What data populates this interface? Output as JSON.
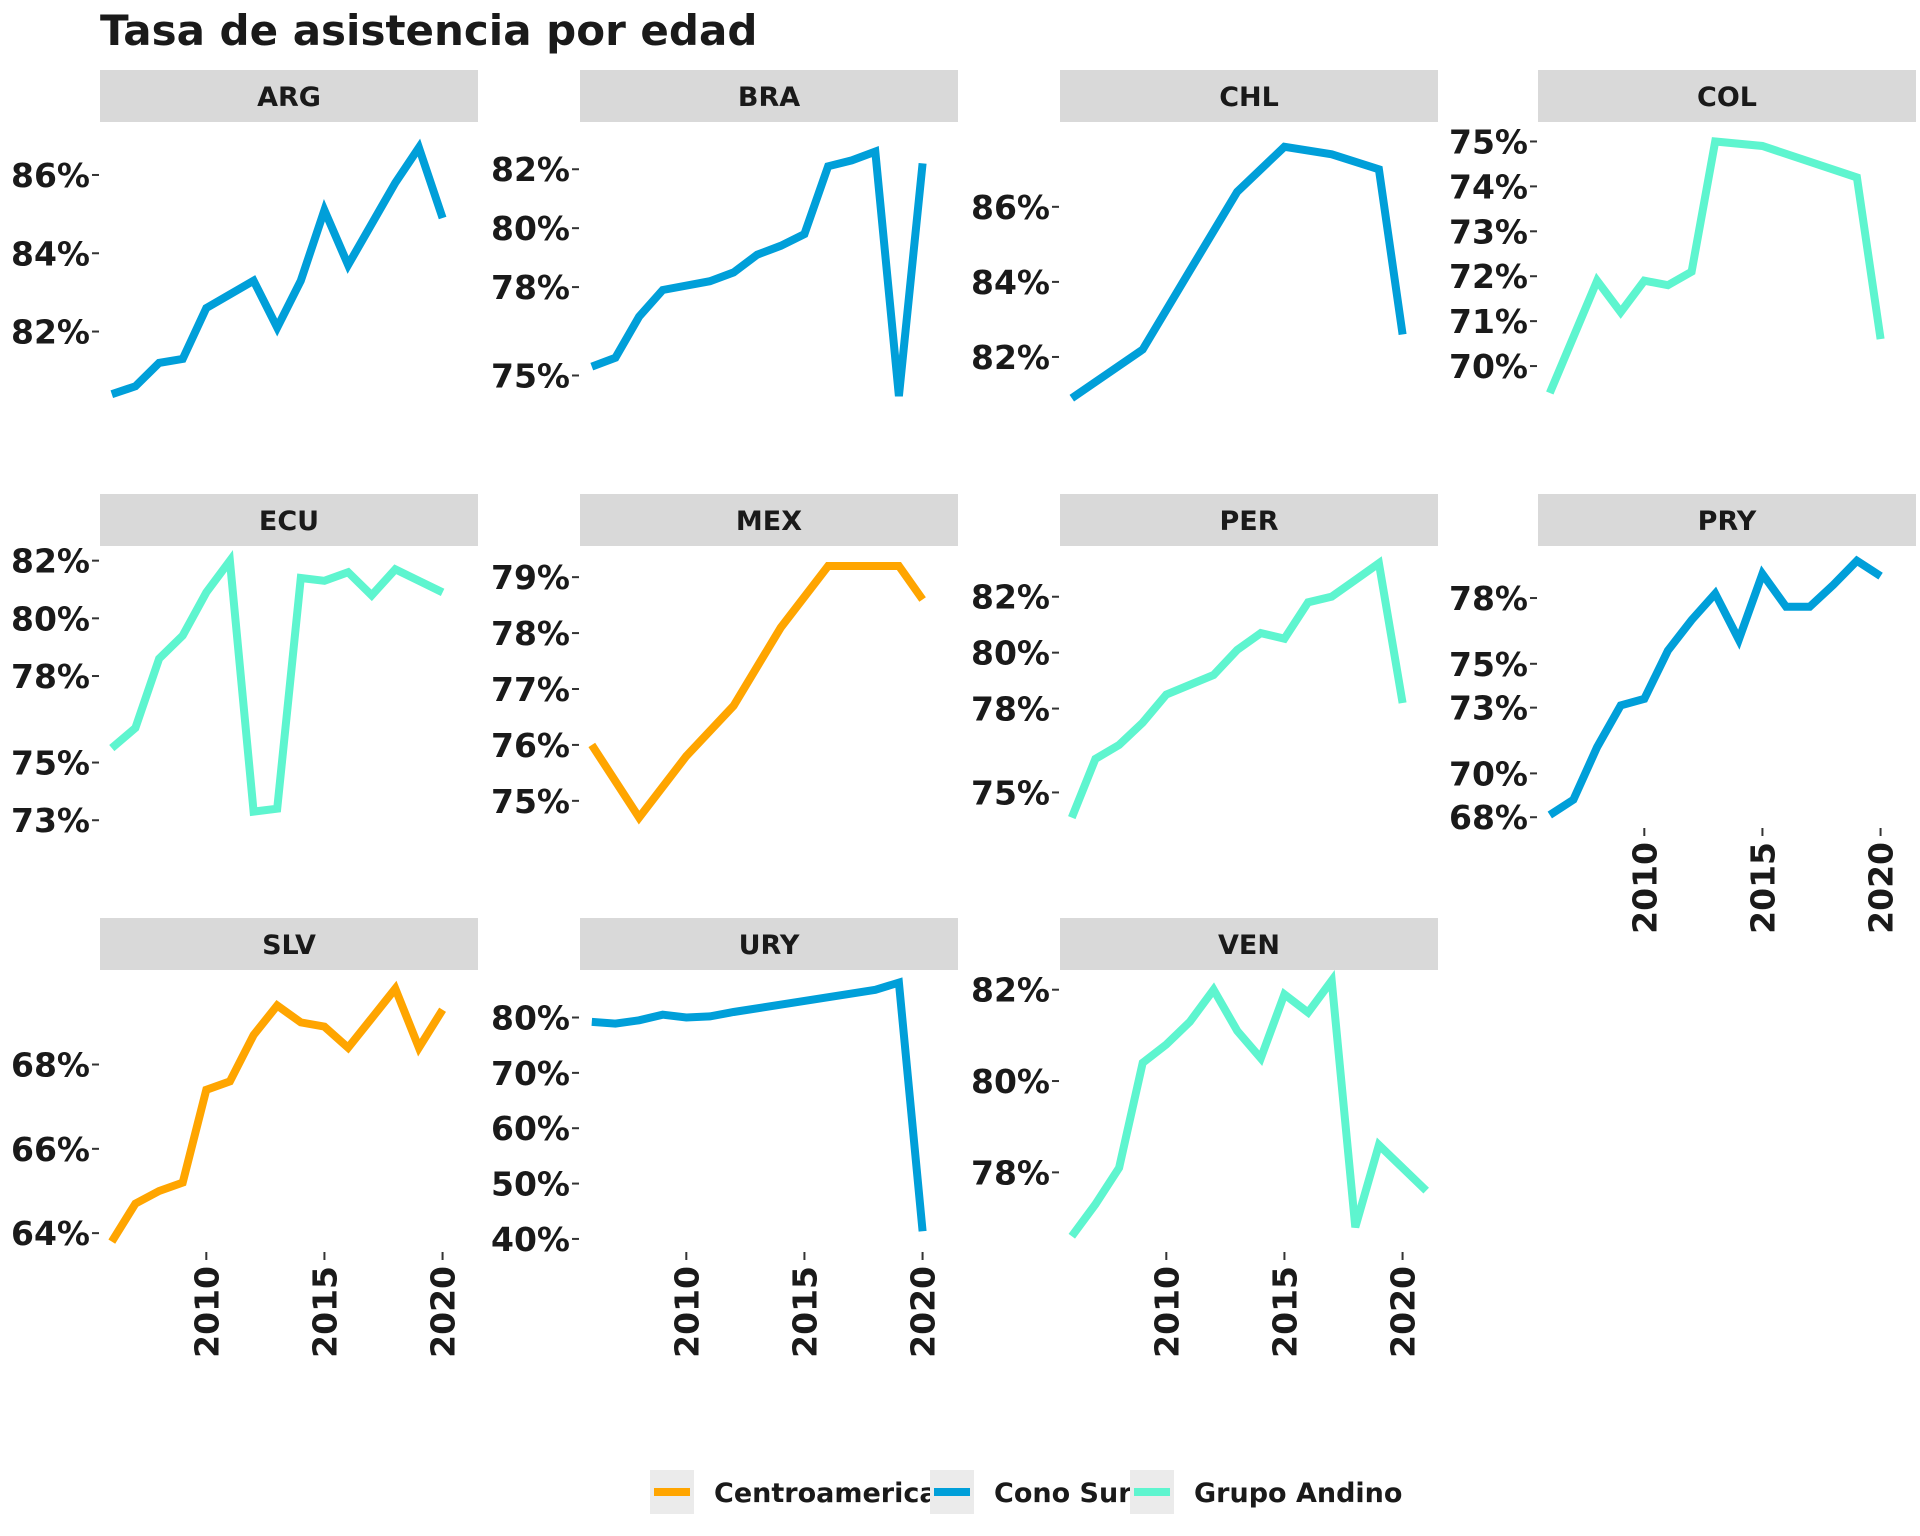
{
  "chart_data": {
    "type": "line",
    "title": "Tasa de asistencia por edad",
    "colors": {
      "Centroamerica": "#FFA500",
      "Cono Sur": "#009FD9",
      "Grupo Andino": "#5EF5CF"
    },
    "legend": {
      "position": "bottom",
      "items": [
        "Centroamerica",
        "Cono Sur",
        "Grupo Andino"
      ]
    },
    "x_ticks": [
      2010,
      2015,
      2020
    ],
    "x_range": [
      2005.5,
      2021.5
    ],
    "grid": false,
    "facets": [
      {
        "name": "ARG",
        "group": "Cono Sur",
        "ylim": [
          80.2,
          87.2
        ],
        "yticks": [
          82,
          84,
          86
        ],
        "tick_labels": [
          "82%",
          "84%",
          "86%"
        ],
        "x": [
          2006,
          2007,
          2008,
          2009,
          2010,
          2012,
          2013,
          2014,
          2015,
          2016,
          2018,
          2019,
          2020
        ],
        "y": [
          80.4,
          80.6,
          81.2,
          81.3,
          82.6,
          83.3,
          82.1,
          83.3,
          85.1,
          83.7,
          85.8,
          86.7,
          84.9
        ]
      },
      {
        "name": "BRA",
        "group": "Cono Sur",
        "ylim": [
          74.1,
          83.4
        ],
        "yticks": [
          75,
          78,
          80,
          82
        ],
        "tick_labels": [
          "75%",
          "78%",
          "80%",
          "82%"
        ],
        "x": [
          2006,
          2007,
          2008,
          2009,
          2011,
          2012,
          2013,
          2014,
          2015,
          2016,
          2017,
          2018,
          2019,
          2020
        ],
        "y": [
          75.3,
          75.6,
          77.0,
          77.9,
          78.2,
          78.5,
          79.1,
          79.4,
          79.8,
          82.1,
          82.3,
          82.6,
          74.3,
          82.2
        ]
      },
      {
        "name": "CHL",
        "group": "Cono Sur",
        "ylim": [
          80.8,
          88.1
        ],
        "yticks": [
          82,
          84,
          86
        ],
        "tick_labels": [
          "82%",
          "84%",
          "86%"
        ],
        "x": [
          2006,
          2009,
          2011,
          2013,
          2015,
          2017,
          2019,
          2020
        ],
        "y": [
          80.9,
          82.2,
          84.3,
          86.4,
          87.6,
          87.4,
          87.0,
          82.6
        ]
      },
      {
        "name": "COL",
        "group": "Grupo Andino",
        "ylim": [
          69.2,
          75.3
        ],
        "yticks": [
          70,
          71,
          72,
          73,
          74,
          75
        ],
        "tick_labels": [
          "70%",
          "71%",
          "72%",
          "73%",
          "74%",
          "75%"
        ],
        "x": [
          2006,
          2008,
          2009,
          2010,
          2011,
          2012,
          2013,
          2015,
          2019,
          2020
        ],
        "y": [
          69.4,
          71.9,
          71.2,
          71.9,
          71.8,
          72.1,
          75.0,
          74.9,
          74.2,
          70.6
        ]
      },
      {
        "name": "ECU",
        "group": "Grupo Andino",
        "ylim": [
          72.8,
          82.3
        ],
        "yticks": [
          73,
          75,
          78,
          80,
          82
        ],
        "tick_labels": [
          "73%",
          "75%",
          "78%",
          "80%",
          "82%"
        ],
        "x": [
          2006,
          2007,
          2008,
          2009,
          2010,
          2011,
          2012,
          2013,
          2014,
          2015,
          2016,
          2017,
          2018,
          2019,
          2020
        ],
        "y": [
          75.5,
          76.2,
          78.6,
          79.4,
          80.9,
          82.0,
          73.3,
          73.4,
          81.4,
          81.3,
          81.6,
          80.8,
          81.7,
          81.3,
          80.9
        ]
      },
      {
        "name": "MEX",
        "group": "Centroamerica",
        "ylim": [
          74.55,
          79.45
        ],
        "yticks": [
          75,
          76,
          77,
          78,
          79
        ],
        "tick_labels": [
          "75%",
          "76%",
          "77%",
          "78%",
          "79%"
        ],
        "x": [
          2006,
          2008,
          2010,
          2012,
          2014,
          2016,
          2017,
          2019,
          2020
        ],
        "y": [
          76.0,
          74.7,
          75.8,
          76.7,
          78.1,
          79.2,
          79.2,
          79.2,
          78.6
        ]
      },
      {
        "name": "PER",
        "group": "Grupo Andino",
        "ylim": [
          73.8,
          83.6
        ],
        "yticks": [
          75,
          78,
          80,
          82
        ],
        "tick_labels": [
          "75%",
          "78%",
          "80%",
          "82%"
        ],
        "x": [
          2006,
          2007,
          2008,
          2009,
          2010,
          2012,
          2013,
          2014,
          2015,
          2016,
          2017,
          2018,
          2019,
          2020
        ],
        "y": [
          74.1,
          76.2,
          76.7,
          77.5,
          78.5,
          79.2,
          80.1,
          80.7,
          80.5,
          81.8,
          82.0,
          82.6,
          83.2,
          78.2
        ]
      },
      {
        "name": "PRY",
        "group": "Cono Sur",
        "ylim": [
          67.6,
          80.1
        ],
        "yticks": [
          68,
          70,
          73,
          75,
          78
        ],
        "tick_labels": [
          "68%",
          "70%",
          "73%",
          "75%",
          "78%"
        ],
        "x": [
          2006,
          2007,
          2008,
          2009,
          2010,
          2011,
          2012,
          2013,
          2014,
          2015,
          2016,
          2017,
          2018,
          2019,
          2020
        ],
        "y": [
          68.1,
          68.8,
          71.2,
          73.1,
          73.4,
          75.6,
          77.0,
          78.2,
          76.1,
          79.1,
          77.6,
          77.6,
          78.6,
          79.7,
          79.0
        ]
      },
      {
        "name": "SLV",
        "group": "Centroamerica",
        "ylim": [
          63.6,
          70.1
        ],
        "yticks": [
          64,
          66,
          68
        ],
        "tick_labels": [
          "64%",
          "66%",
          "68%"
        ],
        "x": [
          2006,
          2007,
          2008,
          2009,
          2010,
          2011,
          2012,
          2013,
          2014,
          2015,
          2016,
          2017,
          2018,
          2019,
          2020
        ],
        "y": [
          63.8,
          64.7,
          65.0,
          65.2,
          67.4,
          67.6,
          68.7,
          69.4,
          69.0,
          68.9,
          68.4,
          69.1,
          69.8,
          68.4,
          69.3
        ]
      },
      {
        "name": "URY",
        "group": "Cono Sur",
        "ylim": [
          38.0,
          87.5
        ],
        "yticks": [
          40,
          50,
          60,
          70,
          80
        ],
        "tick_labels": [
          "40%",
          "50%",
          "60%",
          "70%",
          "80%"
        ],
        "x": [
          2006,
          2007,
          2008,
          2009,
          2010,
          2011,
          2012,
          2015,
          2018,
          2019,
          2020
        ],
        "y": [
          79.2,
          78.9,
          79.5,
          80.5,
          80.0,
          80.2,
          81.0,
          83.0,
          85.0,
          86.3,
          41.4
        ]
      },
      {
        "name": "VEN",
        "group": "Grupo Andino",
        "ylim": [
          76.3,
          82.3
        ],
        "yticks": [
          78,
          80,
          82
        ],
        "tick_labels": [
          "78%",
          "80%",
          "82%"
        ],
        "x": [
          2006,
          2007,
          2008,
          2009,
          2010,
          2011,
          2012,
          2013,
          2014,
          2015,
          2016,
          2017,
          2018,
          2019,
          2021
        ],
        "y": [
          76.6,
          77.3,
          78.1,
          80.4,
          80.8,
          81.3,
          82.0,
          81.1,
          80.5,
          81.9,
          81.5,
          82.2,
          76.8,
          78.6,
          77.6
        ]
      }
    ]
  }
}
